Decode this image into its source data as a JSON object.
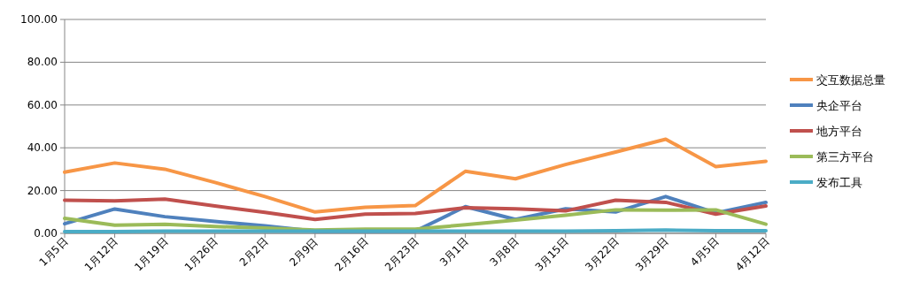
{
  "chart_data": {
    "type": "line",
    "categories": [
      "1月5日",
      "1月12日",
      "1月19日",
      "1月26日",
      "2月2日",
      "2月9日",
      "2月16日",
      "2月23日",
      "3月1日",
      "3月8日",
      "3月15日",
      "3月22日",
      "3月29日",
      "4月5日",
      "4月12日"
    ],
    "series": [
      {
        "name": "交互数据总量",
        "color": "#f79646",
        "values": [
          28.6,
          32.9,
          30,
          23.8,
          17.2,
          10,
          12.2,
          13,
          29,
          25.5,
          32.2,
          38,
          44,
          31.2,
          33.7
        ]
      },
      {
        "name": "央企平台",
        "color": "#4f81bd",
        "values": [
          4.5,
          11.4,
          7.8,
          5.6,
          3.5,
          1,
          1,
          1,
          12.5,
          6.5,
          11.5,
          10,
          17.2,
          9.5,
          14.5
        ]
      },
      {
        "name": "地方平台",
        "color": "#c0504d",
        "values": [
          15.5,
          15.2,
          16,
          12.8,
          9.8,
          6.5,
          9,
          9.3,
          12,
          11.5,
          10.5,
          15.5,
          14.5,
          9,
          12.8
        ]
      },
      {
        "name": "第三方平台",
        "color": "#9bbb59",
        "values": [
          7,
          3.8,
          4.2,
          3.2,
          2.5,
          1.5,
          2,
          2,
          4,
          6.2,
          8.5,
          11,
          10.8,
          11,
          4.3
        ]
      },
      {
        "name": "发布工具",
        "color": "#4bacc6",
        "values": [
          0.8,
          0.8,
          1,
          1,
          1,
          1,
          1,
          1,
          1,
          1,
          1,
          1.2,
          1.5,
          1.2,
          1.2
        ]
      }
    ],
    "ylim": [
      0,
      100
    ],
    "yticks": [
      {
        "value": 0,
        "label": "0.00"
      },
      {
        "value": 20,
        "label": "20.00"
      },
      {
        "value": 40,
        "label": "40.00"
      },
      {
        "value": 60,
        "label": "60.00"
      },
      {
        "value": 80,
        "label": "80.00"
      },
      {
        "value": 100,
        "label": "100.00"
      }
    ],
    "grid": "y",
    "legend": "right",
    "marker": "none",
    "line_style": "solid"
  }
}
